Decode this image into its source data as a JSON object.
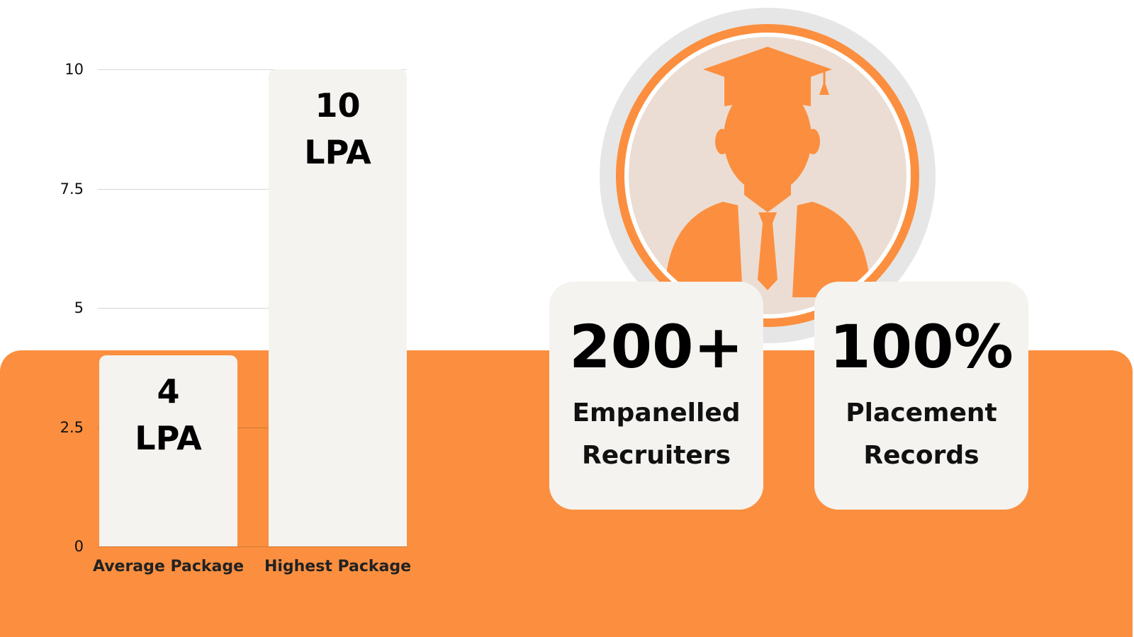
{
  "chart_data": {
    "type": "bar",
    "categories": [
      "Average Package",
      "Highest Package"
    ],
    "values": [
      4,
      10
    ],
    "value_labels": [
      "4 LPA",
      "10 LPA"
    ],
    "color": "#f4f3ef",
    "ylim": [
      0,
      10
    ],
    "yticks": [
      0,
      2.5,
      5,
      7.5,
      10
    ],
    "grid": true
  },
  "stats": [
    {
      "value": "200+",
      "label": "Empanelled Recruiters"
    },
    {
      "value": "100%",
      "label": "Placement Records"
    }
  ]
}
